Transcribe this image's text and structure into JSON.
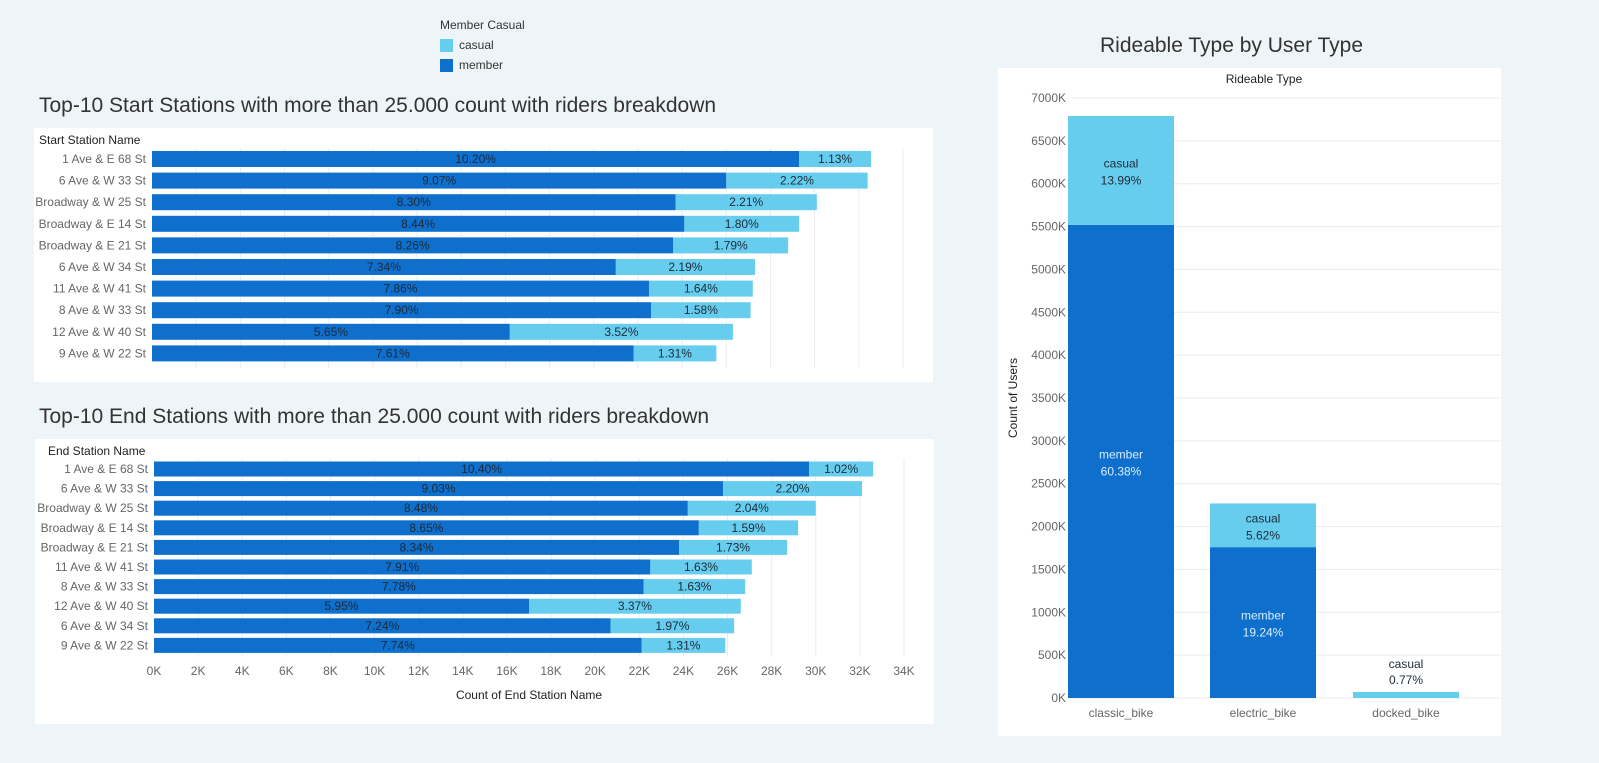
{
  "legend": {
    "title": "Member Casual",
    "items": [
      {
        "label": "casual",
        "color": "#67cdee"
      },
      {
        "label": "member",
        "color": "#0f6fcd"
      }
    ]
  },
  "colors": {
    "member": "#0f6fcd",
    "casual": "#67cdee",
    "member_text": "#1b2a3a",
    "member_label_light": "#dbeeff",
    "casual_text": "#1b2a3a"
  },
  "chart_data": [
    {
      "type": "bar",
      "orientation": "horizontal",
      "stacked": true,
      "title": "Top-10 Start Stations with more than 25.000 count with riders breakdown",
      "ylabel": "Start Station Name",
      "xlabel": "",
      "xlim": [
        0,
        34000
      ],
      "categories": [
        "1 Ave & E 68 St",
        "6 Ave & W 33 St",
        "Broadway & W 25 St",
        "Broadway & E 14 St",
        "Broadway & E 21 St",
        "6 Ave & W 34 St",
        "11 Ave & W 41 St",
        "8 Ave & W 33 St",
        "12 Ave & W 40 St",
        "9 Ave & W 22 St"
      ],
      "series": [
        {
          "name": "member",
          "values": [
            29300,
            26000,
            23700,
            24100,
            23600,
            21000,
            22500,
            22600,
            16200,
            21800
          ],
          "labels": [
            "10.20%",
            "9.07%",
            "8.30%",
            "8.44%",
            "8.26%",
            "7.34%",
            "7.86%",
            "7.90%",
            "5.65%",
            "7.61%"
          ]
        },
        {
          "name": "casual",
          "values": [
            3250,
            6400,
            6400,
            5200,
            5200,
            6300,
            4700,
            4500,
            10100,
            3750
          ],
          "labels": [
            "1.13%",
            "2.22%",
            "2.21%",
            "1.80%",
            "1.79%",
            "2.19%",
            "1.64%",
            "1.58%",
            "3.52%",
            "1.31%"
          ]
        }
      ]
    },
    {
      "type": "bar",
      "orientation": "horizontal",
      "stacked": true,
      "title": "Top-10 End Stations with more than 25.000 count with riders breakdown",
      "ylabel": "End Station Name",
      "xlabel": "Count of End Station Name",
      "xlim": [
        0,
        34000
      ],
      "xticks": [
        "0K",
        "2K",
        "4K",
        "6K",
        "8K",
        "10K",
        "12K",
        "14K",
        "16K",
        "18K",
        "20K",
        "22K",
        "24K",
        "26K",
        "28K",
        "30K",
        "32K",
        "34K"
      ],
      "categories": [
        "1 Ave & E 68 St",
        "6 Ave & W 33 St",
        "Broadway & W 25 St",
        "Broadway & E 14 St",
        "Broadway & E 21 St",
        "11 Ave & W 41 St",
        "8 Ave & W 33 St",
        "12 Ave & W 40 St",
        "6 Ave & W 34 St",
        "9 Ave & W 22 St"
      ],
      "series": [
        {
          "name": "member",
          "values": [
            29700,
            25800,
            24200,
            24700,
            23800,
            22500,
            22200,
            17000,
            20700,
            22100
          ],
          "labels": [
            "10.40%",
            "9.03%",
            "8.48%",
            "8.65%",
            "8.34%",
            "7.91%",
            "7.78%",
            "5.95%",
            "7.24%",
            "7.74%"
          ]
        },
        {
          "name": "casual",
          "values": [
            2900,
            6300,
            5800,
            4500,
            4900,
            4600,
            4600,
            9600,
            5600,
            3800
          ],
          "labels": [
            "1.02%",
            "2.20%",
            "2.04%",
            "1.59%",
            "1.73%",
            "1.63%",
            "1.63%",
            "3.37%",
            "1.97%",
            "1.31%"
          ]
        }
      ]
    },
    {
      "type": "bar",
      "orientation": "vertical",
      "stacked": true,
      "title": "Rideable Type by User Type",
      "subtitle": "Rideable Type",
      "ylabel": "Count of Users",
      "ylim": [
        0,
        7000000
      ],
      "yticks": [
        "0K",
        "500K",
        "1000K",
        "1500K",
        "2000K",
        "2500K",
        "3000K",
        "3500K",
        "4000K",
        "4500K",
        "5000K",
        "5500K",
        "6000K",
        "6500K",
        "7000K"
      ],
      "categories": [
        "classic_bike",
        "electric_bike",
        "docked_bike"
      ],
      "series": [
        {
          "name": "member",
          "values": [
            5520000,
            1760000,
            0
          ],
          "labels": [
            "60.38%",
            "19.24%",
            ""
          ]
        },
        {
          "name": "casual",
          "values": [
            1270000,
            510000,
            70000
          ],
          "labels": [
            "13.99%",
            "5.62%",
            "0.77%"
          ]
        }
      ]
    }
  ]
}
